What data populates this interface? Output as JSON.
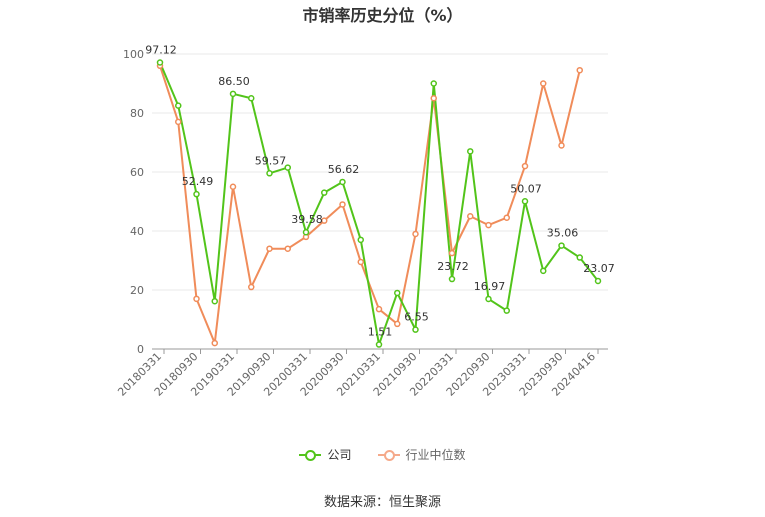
{
  "chart_data": {
    "type": "line",
    "title": "市销率历史分位（%）",
    "source": "数据来源：恒生聚源",
    "ylim": [
      0,
      100
    ],
    "yticks": [
      0,
      20,
      40,
      60,
      80,
      100
    ],
    "x_tick_labels": [
      "20180331",
      "20180930",
      "20190331",
      "20190930",
      "20200331",
      "20200930",
      "20210331",
      "20210930",
      "20220331",
      "20220930",
      "20230331",
      "20230930",
      "20240416"
    ],
    "x": [
      "20180331",
      "20180630",
      "20180930",
      "20181231",
      "20190331",
      "20190630",
      "20190930",
      "20191231",
      "20200331",
      "20200630",
      "20200930",
      "20201231",
      "20210331",
      "20210630",
      "20210930",
      "20211231",
      "20220331",
      "20220630",
      "20220930",
      "20221231",
      "20230331",
      "20230630",
      "20230930",
      "20231231",
      "20240416"
    ],
    "series": [
      {
        "name": "公司",
        "color": "#52c41a",
        "values": [
          97.12,
          82.5,
          52.49,
          16.2,
          86.5,
          85.0,
          59.57,
          61.5,
          39.58,
          53.0,
          56.62,
          37.0,
          1.51,
          19.0,
          6.55,
          90.0,
          23.72,
          67.0,
          16.97,
          13.0,
          50.07,
          26.5,
          35.06,
          31.0,
          23.07
        ],
        "labels": {
          "0": "97.12",
          "2": "52.49",
          "4": "86.50",
          "6": "59.57",
          "8": "39.58",
          "10": "56.62",
          "12": "1.51",
          "14": "6.55",
          "16": "23.72",
          "18": "16.97",
          "20": "50.07",
          "22": "35.06",
          "24": "23.07"
        }
      },
      {
        "name": "行业中位数",
        "color": "#f08c5a",
        "values": [
          96.0,
          77.0,
          17.0,
          2.0,
          55.0,
          21.0,
          34.0,
          34.0,
          38.0,
          43.5,
          49.0,
          29.5,
          13.5,
          8.5,
          39.0,
          85.0,
          32.5,
          45.0,
          42.0,
          44.5,
          62.0,
          90.0,
          69.0,
          94.5,
          null
        ]
      }
    ]
  }
}
